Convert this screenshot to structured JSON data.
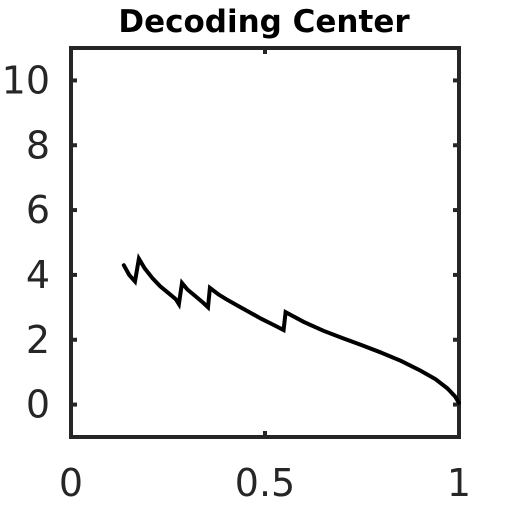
{
  "chart_data": {
    "type": "line",
    "title": "Decoding Center",
    "xlabel": "",
    "ylabel": "",
    "xlim": [
      0,
      1
    ],
    "ylim": [
      -1,
      11
    ],
    "x_ticks": [
      0,
      0.5,
      1
    ],
    "x_tick_labels": [
      "0",
      "0.5",
      "1"
    ],
    "y_ticks": [
      0,
      2,
      4,
      6,
      8,
      10
    ],
    "y_tick_labels": [
      "0",
      "2",
      "4",
      "6",
      "8",
      "10"
    ],
    "grid": false,
    "box": true,
    "series": [
      {
        "color": "#000000",
        "x": [
          0.136,
          0.15,
          0.165,
          0.175,
          0.19,
          0.21,
          0.23,
          0.25,
          0.27,
          0.278,
          0.286,
          0.3,
          0.32,
          0.34,
          0.353,
          0.358,
          0.38,
          0.4,
          0.43,
          0.46,
          0.49,
          0.52,
          0.548,
          0.553,
          0.6,
          0.65,
          0.7,
          0.75,
          0.8,
          0.85,
          0.9,
          0.94,
          0.97,
          0.99,
          1.0
        ],
        "y": [
          4.3,
          4.0,
          3.8,
          4.5,
          4.2,
          3.9,
          3.65,
          3.45,
          3.25,
          3.1,
          3.75,
          3.55,
          3.35,
          3.15,
          3.0,
          3.6,
          3.4,
          3.25,
          3.05,
          2.85,
          2.65,
          2.47,
          2.3,
          2.85,
          2.55,
          2.28,
          2.05,
          1.83,
          1.6,
          1.35,
          1.05,
          0.78,
          0.5,
          0.25,
          0.05
        ]
      }
    ]
  }
}
